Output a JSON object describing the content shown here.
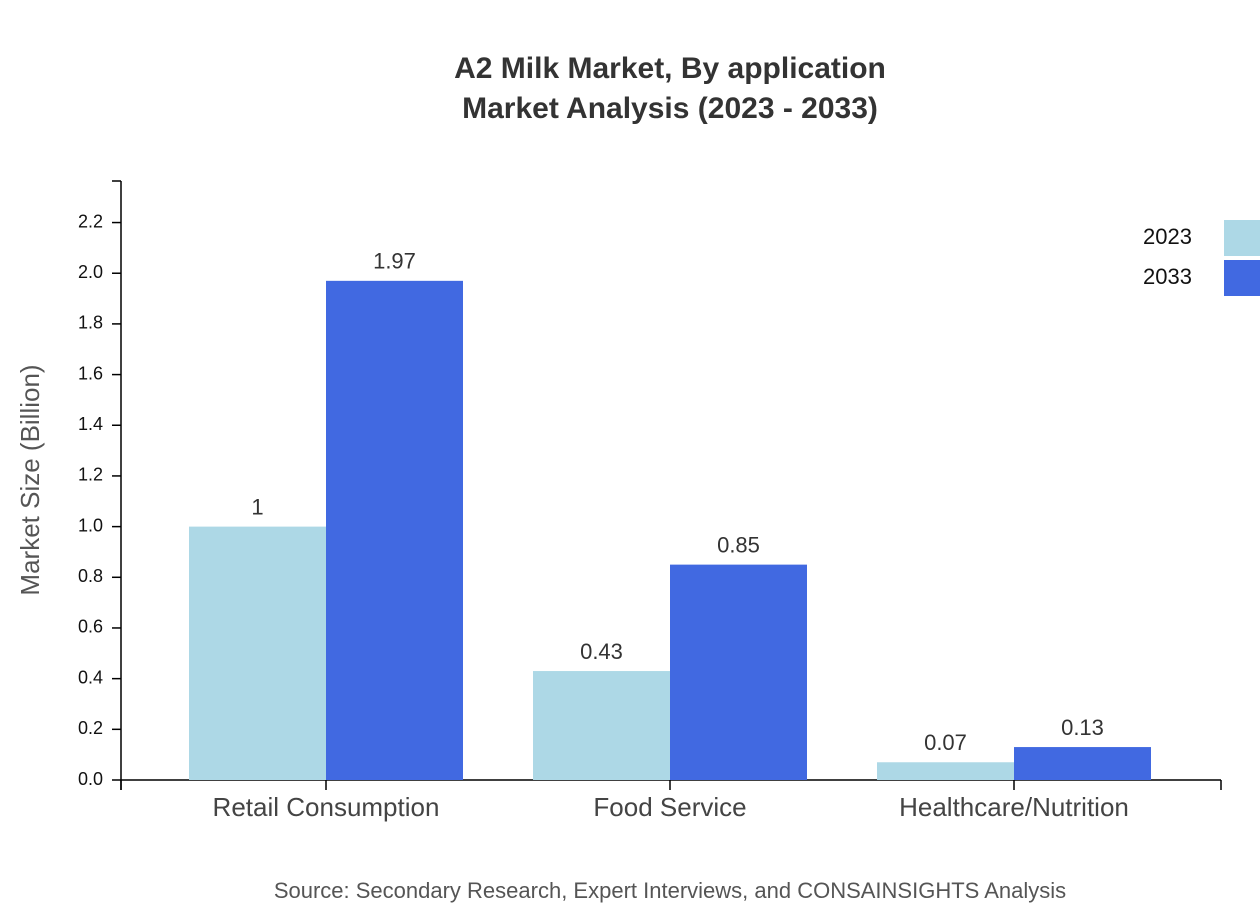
{
  "chart_data": {
    "type": "bar",
    "title": "A2 Milk Market, By application",
    "subtitle": "Market Analysis (2023 - 2033)",
    "y_label": "Market Size (Billion)",
    "source": "Source: Secondary Research, Expert Interviews, and CONSAINSIGHTS Analysis",
    "categories": [
      "Retail Consumption",
      "Food Service",
      "Healthcare/Nutrition"
    ],
    "series": [
      {
        "name": "2023",
        "color": "#add8e6",
        "values": [
          1,
          0.43,
          0.07
        ]
      },
      {
        "name": "2033",
        "color": "#4169e1",
        "values": [
          1.97,
          0.85,
          0.13
        ]
      }
    ],
    "ylim": [
      0,
      2.364
    ],
    "yticks": [
      {
        "value": 0,
        "label": "0.0"
      },
      0.2,
      0.4,
      0.6,
      0.8,
      {
        "value": 1,
        "label": "1.0"
      },
      1.2,
      1.4,
      1.6,
      1.8,
      {
        "value": 2,
        "label": "2.0"
      },
      2.2
    ],
    "legend": "top-right",
    "grid": false
  }
}
